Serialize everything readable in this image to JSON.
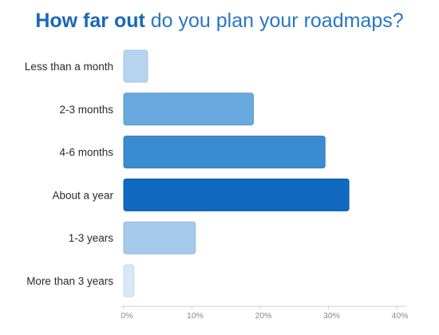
{
  "title": {
    "bold": "How far out",
    "rest": " do you plan your roadmaps?"
  },
  "chart_data": {
    "type": "bar",
    "orientation": "horizontal",
    "title": "How far out do you plan your roadmaps?",
    "categories": [
      "Less than a month",
      "2-3 months",
      "4-6 months",
      "About a year",
      "1-3 years",
      "More than 3 years"
    ],
    "values": [
      3.5,
      19,
      29.5,
      33,
      10.5,
      1.5
    ],
    "xlim": [
      0,
      40
    ],
    "ticks": [
      0,
      10,
      20,
      30,
      40
    ],
    "tick_labels": [
      "0%",
      "10%",
      "20%",
      "30%",
      "40%"
    ],
    "bar_colors": [
      "#b6d4ee",
      "#6aa9dd",
      "#3b8bd0",
      "#1168c0",
      "#a6c9ea",
      "#d8e8f6"
    ],
    "bar_borders": [
      "#9ec3e6",
      "#5196d2",
      "#2a7cc6",
      "#0c57a6",
      "#8fb8e2",
      "#c2daf0"
    ],
    "grid": false
  }
}
